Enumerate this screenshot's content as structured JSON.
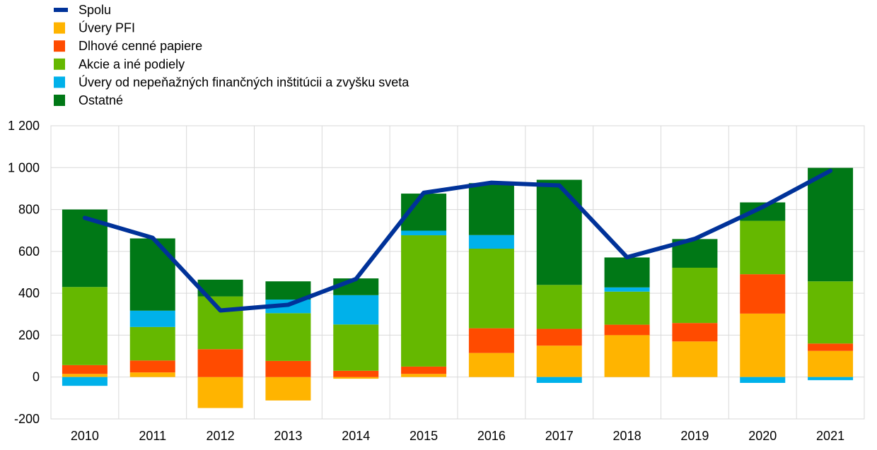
{
  "chart_data": {
    "type": "bar",
    "stacked": true,
    "categories": [
      "2010",
      "2011",
      "2012",
      "2013",
      "2014",
      "2015",
      "2016",
      "2017",
      "2018",
      "2019",
      "2020",
      "2021"
    ],
    "ylim": [
      -200,
      1200
    ],
    "yticks": [
      -200,
      0,
      200,
      400,
      600,
      800,
      1000,
      1200
    ],
    "ytick_labels": [
      "-200",
      "0",
      "200",
      "400",
      "600",
      "800",
      "1 000",
      "1 200"
    ],
    "grid": true,
    "legend_position": "top-left",
    "series": [
      {
        "name": "Úvery PFI",
        "kind": "bar",
        "color": "#FFB400",
        "values": [
          15,
          22,
          -148,
          -112,
          -8,
          15,
          115,
          150,
          200,
          170,
          303,
          125
        ]
      },
      {
        "name": "Dlhové cenné papiere",
        "kind": "bar",
        "color": "#FF4B00",
        "values": [
          42,
          57,
          133,
          77,
          30,
          35,
          118,
          80,
          50,
          88,
          188,
          35
        ]
      },
      {
        "name": "Akcie a iné podiely",
        "kind": "bar",
        "color": "#65B800",
        "values": [
          373,
          160,
          252,
          228,
          221,
          627,
          380,
          210,
          158,
          264,
          255,
          297
        ]
      },
      {
        "name": "Úvery od nepeňažných finančných inštitúcii a zvyšku sveta",
        "kind": "bar",
        "color": "#00B1EA",
        "values": [
          -42,
          78,
          0,
          65,
          140,
          22,
          65,
          -28,
          20,
          0,
          -28,
          -15
        ]
      },
      {
        "name": "Ostatné",
        "kind": "bar",
        "color": "#007816",
        "values": [
          370,
          345,
          80,
          87,
          80,
          177,
          248,
          502,
          143,
          137,
          88,
          542
        ]
      },
      {
        "name": "Spolu",
        "kind": "line",
        "color": "#003299",
        "values": [
          760,
          665,
          318,
          345,
          468,
          880,
          928,
          915,
          572,
          660,
          812,
          985
        ]
      }
    ]
  }
}
